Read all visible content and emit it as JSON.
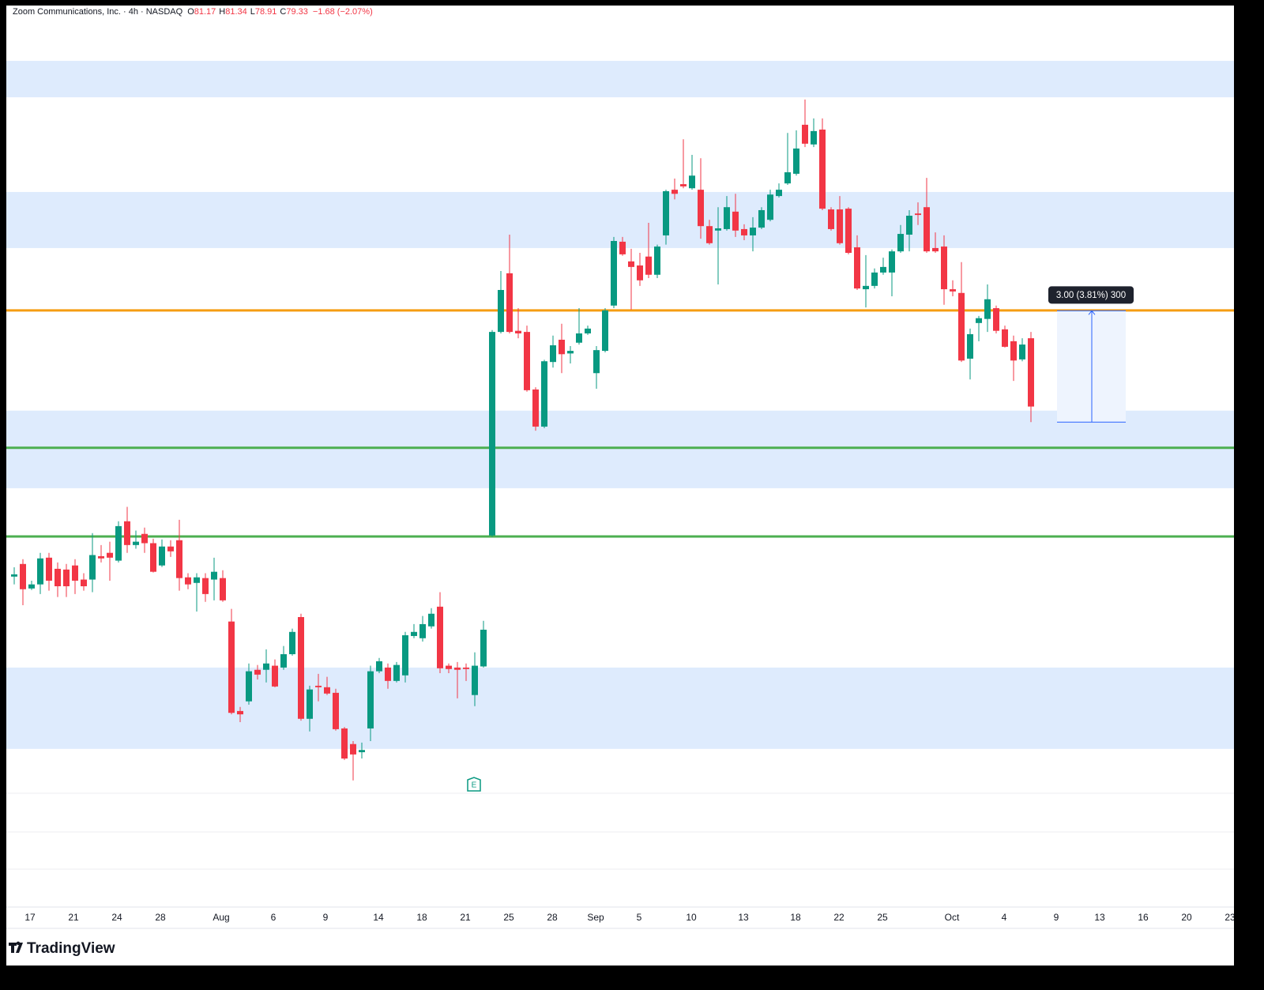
{
  "chart_data": {
    "type": "candlestick",
    "title": "Zoom Communications, Inc. · 4h · NASDAQ",
    "ohlc_labels": [
      "O",
      "H",
      "L",
      "C"
    ],
    "ohlc_values": [
      81.17,
      81.34,
      78.91,
      79.33
    ],
    "change": "−1.68 (−2.07%)",
    "up_color": "#089981",
    "down_color": "#f23645",
    "ylim": [
      65.85,
      90.11
    ],
    "open": [
      74.75,
      75.09,
      74.43,
      74.54,
      75.26,
      74.96,
      74.94,
      75.05,
      74.67,
      74.67,
      75.3,
      75.39,
      75.18,
      76.24,
      75.6,
      75.9,
      75.65,
      75.05,
      75.56,
      75.73,
      74.73,
      74.58,
      74.71,
      74.67,
      74.71,
      73.54,
      71.13,
      71.39,
      72.24,
      72.24,
      72.35,
      72.3,
      72.66,
      73.66,
      70.92,
      71.81,
      71.77,
      71.62,
      70.66,
      70.24,
      70.02,
      70.66,
      72.2,
      72.3,
      71.94,
      72.09,
      73.15,
      73.09,
      73.41,
      73.94,
      72.35,
      72.3,
      72.3,
      71.56,
      72.33,
      75.86,
      81.34,
      82.92,
      81.37,
      81.34,
      79.79,
      78.79,
      80.53,
      81.13,
      80.76,
      81.05,
      81.3,
      80.23,
      80.83,
      82.05,
      83.77,
      83.24,
      83.13,
      83.37,
      82.88,
      83.94,
      85.17,
      85.32,
      85.21,
      85.17,
      84.19,
      84.07,
      84.11,
      84.58,
      84.11,
      83.94,
      84.15,
      84.36,
      85.0,
      85.34,
      85.6,
      86.92,
      86.39,
      86.79,
      84.64,
      84.64,
      84.66,
      83.62,
      82.49,
      82.58,
      82.94,
      82.94,
      83.51,
      83.96,
      84.53,
      84.7,
      83.6,
      83.64,
      82.49,
      82.39,
      80.62,
      81.58,
      81.69,
      81.98,
      81.41,
      81.09,
      80.6,
      81.17
    ],
    "high": [
      75.0,
      75.22,
      74.64,
      75.39,
      75.39,
      75.13,
      75.09,
      75.22,
      74.84,
      75.92,
      75.6,
      75.69,
      76.24,
      76.63,
      75.99,
      76.07,
      75.77,
      75.75,
      75.73,
      76.28,
      74.84,
      74.84,
      74.84,
      75.26,
      74.92,
      73.88,
      71.24,
      72.41,
      72.37,
      72.79,
      72.52,
      72.88,
      73.35,
      73.75,
      71.81,
      72.13,
      72.05,
      71.73,
      70.7,
      70.32,
      70.28,
      72.35,
      72.56,
      72.41,
      72.45,
      73.26,
      73.47,
      73.69,
      73.9,
      74.33,
      72.41,
      72.45,
      72.41,
      72.71,
      73.56,
      81.39,
      82.98,
      83.96,
      81.98,
      81.51,
      79.85,
      80.59,
      81.24,
      81.56,
      80.96,
      81.98,
      81.51,
      80.96,
      81.98,
      83.9,
      83.9,
      83.58,
      83.47,
      84.28,
      83.69,
      85.17,
      85.47,
      86.53,
      86.11,
      86.02,
      84.36,
      84.7,
      85.0,
      85.06,
      84.24,
      84.43,
      84.7,
      85.17,
      85.34,
      86.7,
      86.77,
      87.6,
      87.09,
      87.09,
      84.7,
      85.0,
      84.7,
      83.94,
      83.41,
      83.05,
      83.34,
      83.56,
      84.22,
      84.62,
      84.83,
      85.49,
      84.02,
      83.94,
      82.73,
      83.22,
      81.43,
      81.77,
      82.62,
      82.05,
      81.51,
      81.24,
      81.17,
      81.34
    ],
    "low": [
      74.54,
      73.98,
      74.39,
      74.28,
      74.37,
      74.2,
      74.2,
      74.28,
      74.37,
      74.33,
      75.13,
      74.64,
      75.13,
      75.39,
      75.5,
      75.39,
      74.86,
      75.01,
      75.28,
      74.37,
      74.41,
      73.81,
      74.07,
      74.11,
      74.07,
      71.04,
      70.83,
      71.3,
      71.98,
      71.9,
      71.77,
      72.24,
      72.62,
      70.87,
      70.58,
      71.39,
      71.56,
      70.6,
      69.81,
      69.26,
      69.85,
      70.32,
      72.15,
      71.73,
      71.9,
      71.9,
      73.09,
      73.0,
      73.35,
      72.15,
      72.15,
      71.47,
      71.94,
      71.26,
      72.3,
      75.82,
      81.3,
      81.3,
      81.17,
      79.73,
      78.68,
      78.75,
      80.38,
      80.23,
      80.49,
      81.0,
      81.26,
      79.81,
      80.79,
      81.98,
      83.39,
      81.94,
      82.58,
      82.79,
      82.79,
      83.69,
      84.91,
      85.21,
      85.17,
      83.85,
      83.69,
      82.62,
      84.07,
      83.9,
      83.81,
      83.51,
      84.11,
      84.32,
      84.96,
      85.3,
      85.55,
      86.32,
      86.32,
      84.62,
      84.07,
      83.69,
      83.43,
      82.47,
      82.0,
      82.51,
      82.88,
      82.3,
      83.47,
      83.51,
      84.22,
      83.47,
      83.47,
      82.07,
      82.3,
      80.53,
      80.06,
      81.09,
      81.34,
      81.3,
      80.92,
      80.02,
      80.55,
      78.91
    ],
    "close": [
      74.81,
      74.41,
      74.54,
      75.24,
      74.64,
      74.49,
      74.49,
      74.64,
      74.49,
      75.33,
      75.24,
      75.26,
      76.11,
      75.6,
      75.69,
      75.65,
      74.88,
      75.56,
      75.43,
      74.71,
      74.54,
      74.73,
      74.28,
      74.88,
      74.11,
      71.08,
      71.04,
      72.2,
      72.11,
      72.41,
      71.79,
      72.66,
      73.26,
      70.92,
      71.71,
      71.77,
      71.6,
      70.64,
      69.85,
      69.96,
      70.08,
      72.2,
      72.47,
      71.94,
      72.37,
      73.17,
      73.26,
      73.47,
      73.75,
      72.28,
      72.26,
      72.24,
      72.26,
      72.35,
      73.32,
      81.34,
      82.47,
      81.34,
      81.3,
      79.77,
      78.79,
      80.55,
      80.98,
      80.74,
      80.83,
      81.3,
      81.43,
      80.85,
      81.92,
      83.79,
      83.43,
      83.09,
      82.73,
      82.88,
      83.64,
      85.13,
      85.06,
      85.26,
      85.55,
      84.19,
      83.73,
      84.13,
      84.7,
      84.07,
      83.94,
      84.15,
      84.62,
      85.04,
      85.17,
      85.64,
      86.28,
      86.41,
      86.75,
      84.66,
      84.11,
      83.73,
      83.47,
      82.51,
      82.58,
      82.94,
      83.09,
      83.51,
      83.98,
      84.47,
      84.49,
      83.51,
      83.51,
      82.49,
      82.43,
      80.57,
      81.28,
      81.71,
      82.22,
      81.37,
      80.94,
      80.57,
      81.0,
      79.33
    ],
    "xtick_labels": [
      "17",
      "21",
      "24",
      "28",
      "Aug",
      "6",
      "9",
      "14",
      "18",
      "21",
      "25",
      "28",
      "Sep",
      "5",
      "10",
      "13",
      "18",
      "22",
      "25",
      "Oct",
      "4",
      "9",
      "13",
      "16",
      "20",
      "23"
    ],
    "zone_color": "#deebfd",
    "zones": [
      {
        "from": 87.66,
        "to": 88.64
      },
      {
        "from": 83.6,
        "to": 85.11
      },
      {
        "from": 77.13,
        "to": 79.22
      },
      {
        "from": 70.11,
        "to": 72.3
      }
    ],
    "hlines": [
      {
        "value": 81.92,
        "color": "#f59d12"
      },
      {
        "value": 78.22,
        "color": "#4caf50"
      },
      {
        "value": 75.83,
        "color": "#4caf50"
      }
    ],
    "measure": {
      "label": "3.00 (3.81%) 300",
      "from": 78.91,
      "to": 81.91
    },
    "earnings_marker": "E",
    "watermark": "TradingView"
  }
}
